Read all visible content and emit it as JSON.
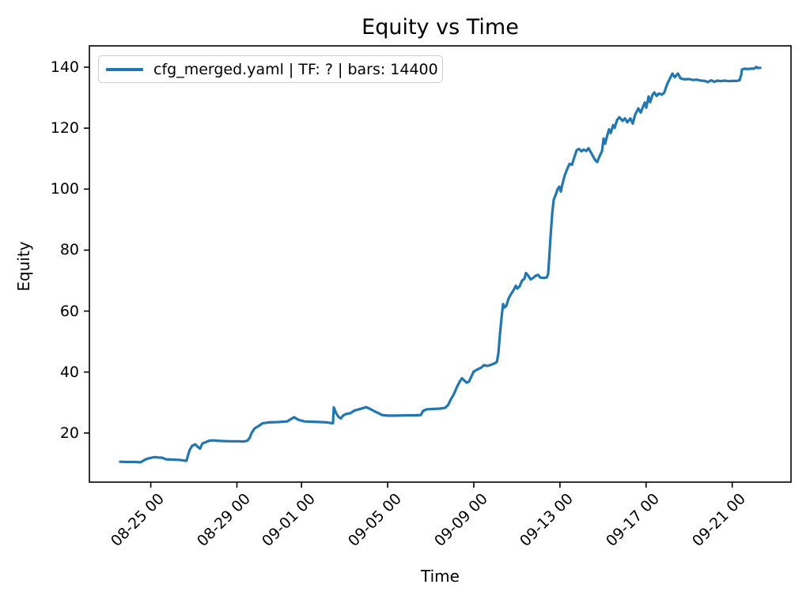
{
  "chart_data": {
    "type": "line",
    "title": "Equity vs Time",
    "xlabel": "Time",
    "ylabel": "Equity",
    "legend_position": "upper left",
    "legend_entries": [
      "cfg_merged.yaml | TF: ? | bars: 14400"
    ],
    "line_color": "#1f77b4",
    "grid": false,
    "x_unit": "days relative to 09-09 00:00",
    "xlim": [
      -17.85,
      14.73
    ],
    "ylim": [
      3.9,
      147.0
    ],
    "y_ticks": [
      20,
      40,
      60,
      80,
      100,
      120,
      140
    ],
    "x_ticks": [
      {
        "pos": -15,
        "label": "08-25 00"
      },
      {
        "pos": -11,
        "label": "08-29 00"
      },
      {
        "pos": -8,
        "label": "09-01 00"
      },
      {
        "pos": -4,
        "label": "09-05 00"
      },
      {
        "pos": 0,
        "label": "09-09 00"
      },
      {
        "pos": 4,
        "label": "09-13 00"
      },
      {
        "pos": 8,
        "label": "09-17 00"
      },
      {
        "pos": 12,
        "label": "09-21 00"
      }
    ],
    "series": [
      {
        "name": "cfg_merged.yaml | TF: ? | bars: 14400",
        "points": [
          [
            -16.42,
            10.6
          ],
          [
            -16.13,
            10.5
          ],
          [
            -15.76,
            10.5
          ],
          [
            -15.47,
            10.4
          ],
          [
            -15.28,
            11.2
          ],
          [
            -15.1,
            11.7
          ],
          [
            -14.84,
            12.1
          ],
          [
            -14.66,
            12.0
          ],
          [
            -14.47,
            11.9
          ],
          [
            -14.29,
            11.4
          ],
          [
            -14.0,
            11.3
          ],
          [
            -13.7,
            11.2
          ],
          [
            -13.48,
            11.0
          ],
          [
            -13.34,
            10.9
          ],
          [
            -13.26,
            13.0
          ],
          [
            -13.19,
            14.5
          ],
          [
            -13.08,
            15.8
          ],
          [
            -12.93,
            16.3
          ],
          [
            -12.82,
            15.5
          ],
          [
            -12.71,
            14.9
          ],
          [
            -12.6,
            16.6
          ],
          [
            -12.45,
            17.0
          ],
          [
            -12.27,
            17.5
          ],
          [
            -12.09,
            17.6
          ],
          [
            -11.79,
            17.4
          ],
          [
            -11.35,
            17.3
          ],
          [
            -10.98,
            17.3
          ],
          [
            -10.69,
            17.2
          ],
          [
            -10.51,
            17.5
          ],
          [
            -10.4,
            18.5
          ],
          [
            -10.32,
            20.0
          ],
          [
            -10.18,
            21.5
          ],
          [
            -9.99,
            22.3
          ],
          [
            -9.81,
            23.2
          ],
          [
            -9.52,
            23.5
          ],
          [
            -9.08,
            23.6
          ],
          [
            -8.67,
            23.8
          ],
          [
            -8.49,
            24.6
          ],
          [
            -8.34,
            25.2
          ],
          [
            -8.19,
            24.5
          ],
          [
            -8.08,
            24.2
          ],
          [
            -7.86,
            23.8
          ],
          [
            -7.49,
            23.7
          ],
          [
            -7.13,
            23.6
          ],
          [
            -6.83,
            23.5
          ],
          [
            -6.65,
            23.3
          ],
          [
            -6.54,
            23.2
          ],
          [
            -6.5,
            28.4
          ],
          [
            -6.39,
            26.5
          ],
          [
            -6.28,
            25.3
          ],
          [
            -6.17,
            24.8
          ],
          [
            -6.06,
            25.8
          ],
          [
            -5.91,
            26.3
          ],
          [
            -5.73,
            26.5
          ],
          [
            -5.55,
            27.4
          ],
          [
            -5.33,
            27.8
          ],
          [
            -5.14,
            28.2
          ],
          [
            -5.0,
            28.5
          ],
          [
            -4.81,
            27.9
          ],
          [
            -4.63,
            27.2
          ],
          [
            -4.45,
            26.6
          ],
          [
            -4.26,
            25.9
          ],
          [
            -4.0,
            25.7
          ],
          [
            -3.64,
            25.7
          ],
          [
            -3.2,
            25.8
          ],
          [
            -2.76,
            25.8
          ],
          [
            -2.46,
            25.9
          ],
          [
            -2.35,
            27.3
          ],
          [
            -2.17,
            27.8
          ],
          [
            -1.87,
            27.9
          ],
          [
            -1.58,
            28.0
          ],
          [
            -1.32,
            28.3
          ],
          [
            -1.18,
            29.3
          ],
          [
            -1.07,
            31.0
          ],
          [
            -0.92,
            32.8
          ],
          [
            -0.77,
            35.3
          ],
          [
            -0.66,
            36.8
          ],
          [
            -0.55,
            38.0
          ],
          [
            -0.44,
            37.2
          ],
          [
            -0.33,
            36.5
          ],
          [
            -0.22,
            36.9
          ],
          [
            -0.11,
            38.6
          ],
          [
            0.0,
            40.2
          ],
          [
            0.15,
            40.8
          ],
          [
            0.33,
            41.4
          ],
          [
            0.48,
            42.3
          ],
          [
            0.62,
            42.0
          ],
          [
            0.77,
            42.3
          ],
          [
            0.92,
            42.7
          ],
          [
            1.07,
            43.3
          ],
          [
            1.14,
            46.0
          ],
          [
            1.21,
            52.0
          ],
          [
            1.29,
            58.0
          ],
          [
            1.36,
            62.3
          ],
          [
            1.43,
            61.2
          ],
          [
            1.51,
            61.8
          ],
          [
            1.62,
            64.2
          ],
          [
            1.73,
            65.6
          ],
          [
            1.84,
            66.8
          ],
          [
            1.95,
            68.3
          ],
          [
            2.02,
            67.4
          ],
          [
            2.13,
            68.2
          ],
          [
            2.24,
            70.0
          ],
          [
            2.35,
            70.6
          ],
          [
            2.42,
            72.5
          ],
          [
            2.53,
            71.6
          ],
          [
            2.64,
            70.4
          ],
          [
            2.76,
            70.9
          ],
          [
            2.87,
            71.6
          ],
          [
            2.98,
            71.9
          ],
          [
            3.09,
            71.0
          ],
          [
            3.23,
            70.9
          ],
          [
            3.38,
            71.0
          ],
          [
            3.45,
            72.0
          ],
          [
            3.49,
            76.0
          ],
          [
            3.56,
            84.0
          ],
          [
            3.64,
            92.0
          ],
          [
            3.71,
            96.5
          ],
          [
            3.82,
            98.5
          ],
          [
            3.89,
            100.0
          ],
          [
            3.97,
            100.8
          ],
          [
            4.04,
            99.2
          ],
          [
            4.11,
            101.5
          ],
          [
            4.22,
            104.5
          ],
          [
            4.33,
            106.5
          ],
          [
            4.45,
            108.3
          ],
          [
            4.56,
            108.0
          ],
          [
            4.67,
            110.5
          ],
          [
            4.78,
            112.8
          ],
          [
            4.89,
            113.2
          ],
          [
            5.0,
            112.4
          ],
          [
            5.11,
            113.0
          ],
          [
            5.22,
            112.5
          ],
          [
            5.33,
            113.4
          ],
          [
            5.44,
            112.0
          ],
          [
            5.55,
            110.6
          ],
          [
            5.66,
            109.3
          ],
          [
            5.73,
            108.9
          ],
          [
            5.84,
            110.8
          ],
          [
            5.95,
            112.4
          ],
          [
            6.03,
            116.6
          ],
          [
            6.1,
            114.9
          ],
          [
            6.21,
            117.9
          ],
          [
            6.28,
            119.6
          ],
          [
            6.36,
            118.4
          ],
          [
            6.47,
            121.0
          ],
          [
            6.54,
            120.1
          ],
          [
            6.65,
            122.6
          ],
          [
            6.76,
            123.6
          ],
          [
            6.91,
            122.4
          ],
          [
            7.02,
            123.2
          ],
          [
            7.13,
            121.9
          ],
          [
            7.27,
            123.2
          ],
          [
            7.38,
            121.5
          ],
          [
            7.49,
            124.4
          ],
          [
            7.64,
            126.5
          ],
          [
            7.75,
            125.1
          ],
          [
            7.86,
            127.1
          ],
          [
            7.94,
            128.4
          ],
          [
            8.01,
            126.7
          ],
          [
            8.12,
            130.4
          ],
          [
            8.19,
            128.5
          ],
          [
            8.3,
            130.9
          ],
          [
            8.38,
            131.7
          ],
          [
            8.49,
            130.6
          ],
          [
            8.6,
            131.4
          ],
          [
            8.74,
            131.0
          ],
          [
            8.85,
            131.7
          ],
          [
            8.93,
            133.5
          ],
          [
            9.0,
            134.8
          ],
          [
            9.08,
            135.9
          ],
          [
            9.22,
            137.9
          ],
          [
            9.33,
            136.7
          ],
          [
            9.48,
            137.9
          ],
          [
            9.59,
            136.4
          ],
          [
            9.66,
            136.2
          ],
          [
            9.81,
            136.0
          ],
          [
            9.99,
            136.1
          ],
          [
            10.18,
            135.8
          ],
          [
            10.36,
            135.9
          ],
          [
            10.54,
            135.6
          ],
          [
            10.73,
            135.5
          ],
          [
            10.87,
            135.1
          ],
          [
            11.02,
            135.7
          ],
          [
            11.17,
            135.2
          ],
          [
            11.31,
            135.6
          ],
          [
            11.46,
            135.4
          ],
          [
            11.65,
            135.6
          ],
          [
            11.83,
            135.4
          ],
          [
            12.01,
            135.5
          ],
          [
            12.2,
            135.5
          ],
          [
            12.34,
            135.7
          ],
          [
            12.42,
            137.5
          ],
          [
            12.45,
            139.2
          ],
          [
            12.56,
            139.5
          ],
          [
            12.71,
            139.4
          ],
          [
            12.86,
            139.5
          ],
          [
            13.01,
            139.5
          ],
          [
            13.12,
            140.1
          ],
          [
            13.19,
            139.7
          ],
          [
            13.3,
            139.8
          ]
        ]
      }
    ]
  }
}
